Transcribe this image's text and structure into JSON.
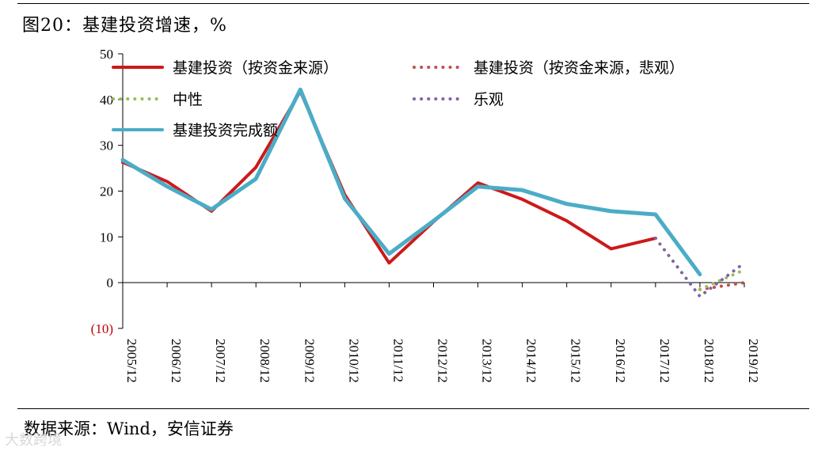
{
  "title": "图20：基建投资增速，%",
  "source": "数据来源：Wind，安信证券",
  "watermark": "大数跨境",
  "colors": {
    "red": "#cc1a1a",
    "teal": "#4bacc6",
    "green": "#9bbb59",
    "purple": "#8064a2",
    "negative_label": "#c00000"
  },
  "chart_data": {
    "type": "line",
    "x": [
      "2005/12",
      "2006/12",
      "2007/12",
      "2008/12",
      "2009/12",
      "2010/12",
      "2011/12",
      "2012/12",
      "2013/12",
      "2014/12",
      "2015/12",
      "2016/12",
      "2017/12",
      "2018/12",
      "2019/12"
    ],
    "xtick_labels": [
      "2005/12",
      "2006/12",
      "2007/12",
      "2008/12",
      "2009/12",
      "2010/12",
      "2011/12",
      "2012/12",
      "2013/12",
      "2014/12",
      "2015/12",
      "2016/12",
      "2017/12",
      "2018/12",
      "2019/12"
    ],
    "ylim": [
      -10,
      50
    ],
    "yticks": [
      {
        "value": 50,
        "label": "50"
      },
      {
        "value": 40,
        "label": "40"
      },
      {
        "value": 30,
        "label": "30"
      },
      {
        "value": 20,
        "label": "20"
      },
      {
        "value": 10,
        "label": "10"
      },
      {
        "value": 0,
        "label": "0"
      },
      {
        "value": -10,
        "label": "(10)"
      }
    ],
    "legend_placement": "top",
    "grid": false,
    "series": [
      {
        "name": "基建投资（按资金来源）",
        "style": "solid",
        "color": "#cc1a1a",
        "points": [
          [
            "2005/12",
            26.3
          ],
          [
            "2006/12",
            22.1
          ],
          [
            "2007/12",
            15.6
          ],
          [
            "2008/12",
            25.2
          ],
          [
            "2009/12",
            41.8
          ],
          [
            "2010/12",
            19.2
          ],
          [
            "2011/12",
            4.3
          ],
          [
            "2012/12",
            13.3
          ],
          [
            "2013/12",
            21.8
          ],
          [
            "2014/12",
            18.2
          ],
          [
            "2015/12",
            13.5
          ],
          [
            "2016/12",
            7.4
          ],
          [
            "2017/12",
            9.7
          ]
        ]
      },
      {
        "name": "基建投资（按资金来源，悲观）",
        "style": "dotted",
        "color": "#c0504d",
        "points": [
          [
            "2018/12",
            -1.5
          ],
          [
            "2019/12",
            0.0
          ]
        ]
      },
      {
        "name": "中性",
        "style": "dotted",
        "color": "#9bbb59",
        "points": [
          [
            "2018/12",
            -1.5
          ],
          [
            "2019/12",
            2.8
          ]
        ]
      },
      {
        "name": "乐观",
        "style": "dotted",
        "color": "#8064a2",
        "points": [
          [
            "2017/12",
            9.7
          ],
          [
            "2018/12",
            -3.0
          ],
          [
            "2019/12",
            4.3
          ]
        ]
      },
      {
        "name": "基建投资完成额",
        "style": "solid",
        "color": "#4bacc6",
        "points": [
          [
            "2005/12",
            26.8
          ],
          [
            "2006/12",
            21.0
          ],
          [
            "2007/12",
            16.0
          ],
          [
            "2008/12",
            22.7
          ],
          [
            "2009/12",
            42.2
          ],
          [
            "2010/12",
            18.4
          ],
          [
            "2011/12",
            6.3
          ],
          [
            "2012/12",
            13.5
          ],
          [
            "2013/12",
            21.0
          ],
          [
            "2014/12",
            20.2
          ],
          [
            "2015/12",
            17.2
          ],
          [
            "2016/12",
            15.6
          ],
          [
            "2017/12",
            14.9
          ],
          [
            "2018/12",
            1.8
          ]
        ]
      }
    ]
  }
}
